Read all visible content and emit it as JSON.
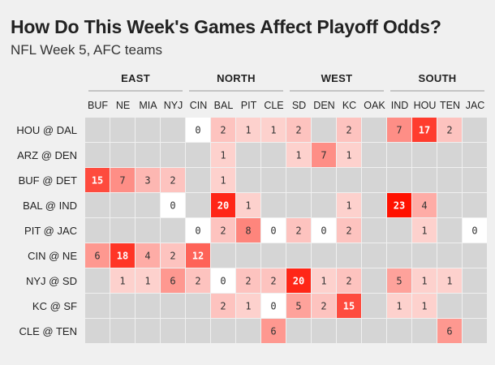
{
  "title": "How Do This Week's Games Affect Playoff Odds?",
  "subtitle": "NFL Week 5, AFC teams",
  "chart_data": {
    "type": "heatmap",
    "divisions": [
      {
        "name": "EAST",
        "teams": [
          "BUF",
          "NE",
          "MIA",
          "NYJ"
        ]
      },
      {
        "name": "NORTH",
        "teams": [
          "CIN",
          "BAL",
          "PIT",
          "CLE"
        ]
      },
      {
        "name": "WEST",
        "teams": [
          "SD",
          "DEN",
          "KC",
          "OAK"
        ]
      },
      {
        "name": "SOUTH",
        "teams": [
          "IND",
          "HOU",
          "TEN",
          "JAC"
        ]
      }
    ],
    "columns": [
      "BUF",
      "NE",
      "MIA",
      "NYJ",
      "CIN",
      "BAL",
      "PIT",
      "CLE",
      "SD",
      "DEN",
      "KC",
      "OAK",
      "IND",
      "HOU",
      "TEN",
      "JAC"
    ],
    "rows": [
      "HOU @ DAL",
      "ARZ @ DEN",
      "BUF @ DET",
      "BAL @ IND",
      "PIT @ JAC",
      "CIN @ NE",
      "NYJ @ SD",
      "KC @ SF",
      "CLE @ TEN"
    ],
    "values": [
      [
        null,
        null,
        null,
        null,
        0,
        2,
        1,
        1,
        2,
        null,
        2,
        null,
        7,
        17,
        2,
        null
      ],
      [
        null,
        null,
        null,
        null,
        null,
        1,
        null,
        null,
        1,
        7,
        1,
        null,
        null,
        null,
        null,
        null
      ],
      [
        15,
        7,
        3,
        2,
        null,
        1,
        null,
        null,
        null,
        null,
        null,
        null,
        null,
        null,
        null,
        null
      ],
      [
        null,
        null,
        null,
        0,
        null,
        20,
        1,
        null,
        null,
        null,
        1,
        null,
        23,
        4,
        null,
        null
      ],
      [
        null,
        null,
        null,
        null,
        0,
        2,
        8,
        0,
        2,
        0,
        2,
        null,
        null,
        1,
        null,
        0
      ],
      [
        6,
        18,
        4,
        2,
        12,
        null,
        null,
        null,
        null,
        null,
        null,
        null,
        null,
        null,
        null,
        null
      ],
      [
        null,
        1,
        1,
        6,
        2,
        0,
        2,
        2,
        20,
        1,
        2,
        null,
        5,
        1,
        1,
        null
      ],
      [
        null,
        null,
        null,
        null,
        null,
        2,
        1,
        0,
        5,
        2,
        15,
        null,
        1,
        1,
        null,
        null
      ],
      [
        null,
        null,
        null,
        null,
        null,
        null,
        null,
        6,
        null,
        null,
        null,
        null,
        null,
        null,
        6,
        null
      ]
    ],
    "colors": {
      "empty": "#d5d5d5",
      "zero": "#ffffff",
      "low": "#fde5e3",
      "high": "#ff1100",
      "text_dark": "#333333",
      "text_light": "#ffffff"
    }
  }
}
